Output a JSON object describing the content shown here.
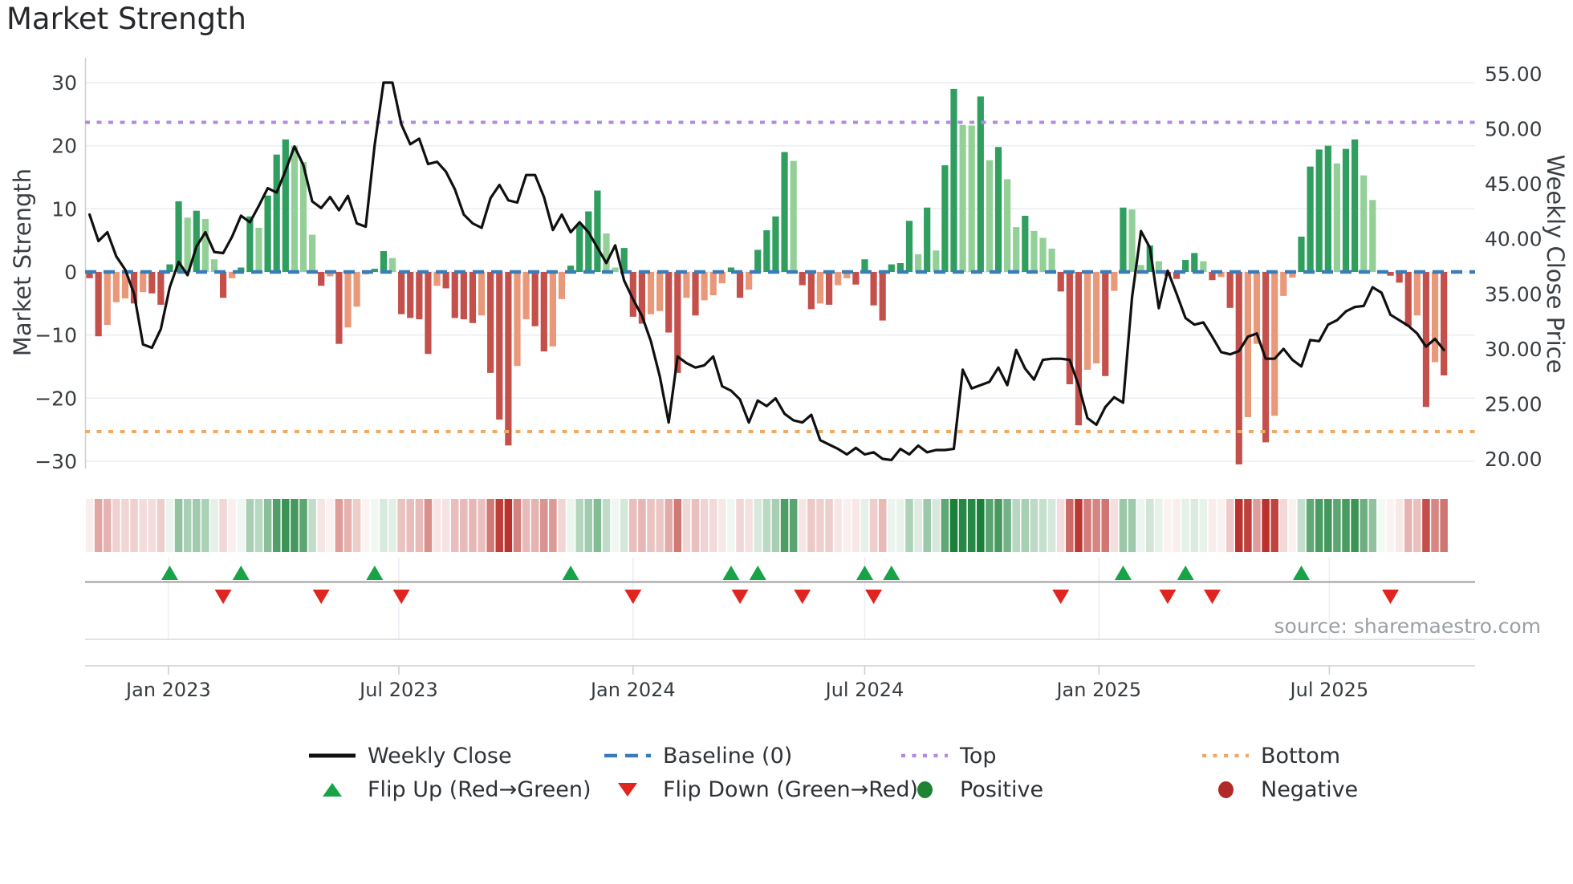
{
  "title": "Market Strength",
  "source": "source: sharemaestro.com",
  "axes": {
    "left_title": "Market Strength",
    "right_title": "Weekly Close Price",
    "left_ticks": [
      {
        "value": 30,
        "label": "30"
      },
      {
        "value": 20,
        "label": "20"
      },
      {
        "value": 10,
        "label": "10"
      },
      {
        "value": 0,
        "label": "0"
      },
      {
        "value": -10,
        "label": "−10"
      },
      {
        "value": -20,
        "label": "−20"
      },
      {
        "value": -30,
        "label": "−30"
      }
    ],
    "right_ticks": [
      {
        "value": 55,
        "label": "55.00"
      },
      {
        "value": 50,
        "label": "50.00"
      },
      {
        "value": 45,
        "label": "45.00"
      },
      {
        "value": 40,
        "label": "40.00"
      },
      {
        "value": 35,
        "label": "35.00"
      },
      {
        "value": 30,
        "label": "30.00"
      },
      {
        "value": 25,
        "label": "25.00"
      },
      {
        "value": 20,
        "label": "20.00"
      }
    ],
    "x_ticks": [
      {
        "date": "2023-01-01",
        "label": "Jan 2023"
      },
      {
        "date": "2023-07-01",
        "label": "Jul 2023"
      },
      {
        "date": "2024-01-01",
        "label": "Jan 2024"
      },
      {
        "date": "2024-07-01",
        "label": "Jul 2024"
      },
      {
        "date": "2025-01-01",
        "label": "Jan 2025"
      },
      {
        "date": "2025-07-01",
        "label": "Jul 2025"
      }
    ]
  },
  "chart_data": {
    "type": "bar+line",
    "x_mode": "weekly",
    "week0": "2022-10-31",
    "weeks": 153,
    "left_ylim": [
      -33,
      33
    ],
    "right_ylim": [
      18.5,
      56.5
    ],
    "baseline": 0,
    "top_level": 23.7,
    "bottom_level": -25.3,
    "grid": "horizontal",
    "strength": [
      -1.0,
      -10.2,
      -8.4,
      -4.8,
      -4.2,
      -5.0,
      -3.2,
      -3.4,
      -5.2,
      1.2,
      11.2,
      8.6,
      9.7,
      8.4,
      2.0,
      -4.1,
      -1.0,
      0.7,
      8.8,
      7.0,
      12.1,
      18.6,
      21.0,
      20.0,
      17.4,
      5.9,
      -2.2,
      -0.7,
      -11.4,
      -8.8,
      -5.5,
      -0.4,
      0.5,
      3.3,
      2.2,
      -6.7,
      -7.3,
      -7.5,
      -13.0,
      -2.2,
      -2.6,
      -7.3,
      -7.5,
      -8.1,
      -6.9,
      -16.0,
      -23.4,
      -27.5,
      -14.9,
      -7.5,
      -8.6,
      -12.6,
      -11.8,
      -4.3,
      1.0,
      7.5,
      9.6,
      12.9,
      6.1,
      0.7,
      3.8,
      -7.1,
      -8.2,
      -6.7,
      -6.2,
      -9.6,
      -16.0,
      -4.1,
      -6.9,
      -4.5,
      -3.7,
      -1.8,
      0.7,
      -4.1,
      -2.8,
      3.5,
      6.6,
      8.8,
      19.0,
      17.6,
      -2.1,
      -5.9,
      -5.0,
      -5.2,
      -2.1,
      -1.0,
      -2.0,
      2.0,
      -5.3,
      -7.7,
      1.2,
      1.4,
      8.1,
      2.8,
      10.2,
      3.4,
      16.9,
      29.0,
      23.3,
      23.2,
      27.8,
      17.7,
      19.8,
      14.7,
      7.1,
      8.9,
      6.5,
      5.4,
      3.7,
      -3.1,
      -17.8,
      -24.3,
      -15.5,
      -14.5,
      -16.5,
      -3.0,
      10.2,
      9.9,
      1.1,
      4.2,
      1.7,
      -0.6,
      -1.1,
      1.9,
      3.0,
      1.7,
      -1.3,
      -0.8,
      -5.7,
      -30.5,
      -23.0,
      -11.4,
      -27.0,
      -22.8,
      -3.8,
      -0.9,
      5.6,
      16.7,
      19.4,
      20.0,
      17.2,
      19.5,
      21.0,
      15.3,
      11.4,
      0.3,
      -0.6,
      -1.7,
      -8.6,
      -6.9,
      -21.4,
      -14.3,
      -16.4
    ],
    "weekly_close": [
      42.2,
      39.8,
      40.6,
      38.4,
      37.2,
      35.0,
      30.4,
      30.1,
      31.8,
      35.6,
      37.9,
      36.7,
      39.3,
      40.6,
      38.8,
      38.7,
      40.2,
      42.1,
      41.5,
      43.0,
      44.6,
      44.2,
      46.2,
      48.4,
      46.7,
      43.4,
      42.8,
      43.8,
      42.6,
      43.9,
      41.4,
      41.1,
      48.5,
      54.2,
      54.2,
      50.4,
      48.6,
      49.1,
      46.8,
      47.0,
      46.1,
      44.5,
      42.2,
      41.4,
      41.0,
      43.7,
      44.9,
      43.5,
      43.3,
      45.8,
      45.8,
      43.8,
      40.8,
      42.2,
      40.6,
      41.5,
      40.6,
      39.2,
      37.8,
      39.4,
      36.2,
      34.5,
      33.0,
      30.7,
      27.5,
      23.3,
      29.3,
      28.7,
      28.3,
      28.5,
      29.3,
      26.6,
      26.2,
      25.4,
      23.3,
      25.3,
      24.8,
      25.5,
      24.1,
      23.5,
      23.3,
      24.0,
      21.7,
      21.3,
      20.9,
      20.4,
      21.0,
      20.4,
      20.6,
      20.0,
      19.9,
      20.9,
      20.4,
      21.2,
      20.6,
      20.8,
      20.8,
      20.9,
      28.1,
      26.4,
      26.7,
      27.0,
      28.3,
      26.7,
      29.9,
      28.2,
      27.2,
      29.0,
      29.1,
      29.1,
      29.0,
      26.7,
      23.7,
      23.1,
      24.7,
      25.6,
      25.1,
      34.7,
      40.7,
      39.2,
      33.7,
      37.1,
      35.0,
      32.8,
      32.2,
      32.4,
      31.1,
      29.7,
      29.5,
      29.8,
      31.1,
      31.4,
      29.1,
      29.1,
      30.0,
      29.0,
      28.4,
      30.8,
      30.7,
      32.2,
      32.6,
      33.4,
      33.8,
      33.9,
      35.6,
      35.1,
      33.1,
      32.6,
      32.1,
      31.4,
      30.2,
      30.9,
      29.9
    ],
    "flip_up_weeks": [
      9,
      17,
      32,
      54,
      72,
      75,
      87,
      90,
      116,
      123,
      136
    ],
    "flip_down_weeks": [
      15,
      26,
      35,
      61,
      73,
      80,
      88,
      109,
      121,
      126,
      146
    ]
  },
  "legend": {
    "items": [
      {
        "label": "Weekly Close",
        "swatch": "line",
        "color": "#111111"
      },
      {
        "label": "Baseline (0)",
        "swatch": "dashes",
        "color": "#3a7cb8"
      },
      {
        "label": "Top",
        "swatch": "dots",
        "color": "#b18be0"
      },
      {
        "label": "Bottom",
        "swatch": "dots",
        "color": "#f2a964"
      },
      {
        "label": "Flip Up (Red→Green)",
        "swatch": "tri-up",
        "color": "#19a347"
      },
      {
        "label": "Flip Down (Green→Red)",
        "swatch": "tri-down",
        "color": "#e02521"
      },
      {
        "label": "Positive",
        "swatch": "dot",
        "color": "#1e8434"
      },
      {
        "label": "Negative",
        "swatch": "dot",
        "color": "#b02a27"
      }
    ]
  },
  "colors": {
    "positive_strong": "#2f9e5f",
    "positive_weak": "#93d097",
    "negative_strong": "#c4504c",
    "negative_weak": "#e99879",
    "heat_green": "24,128,56",
    "heat_red": "185,50,45",
    "close_line": "#101010",
    "baseline": "#3a7cb8",
    "top_line": "#b18be0",
    "bottom_line": "#f2a964",
    "flip_up": "#19a347",
    "flip_down": "#e02521",
    "grid": "#ebedf3",
    "spine": "#cdd0d6",
    "panel_line": "#a8a8a8",
    "tick_text": "#383d42"
  }
}
